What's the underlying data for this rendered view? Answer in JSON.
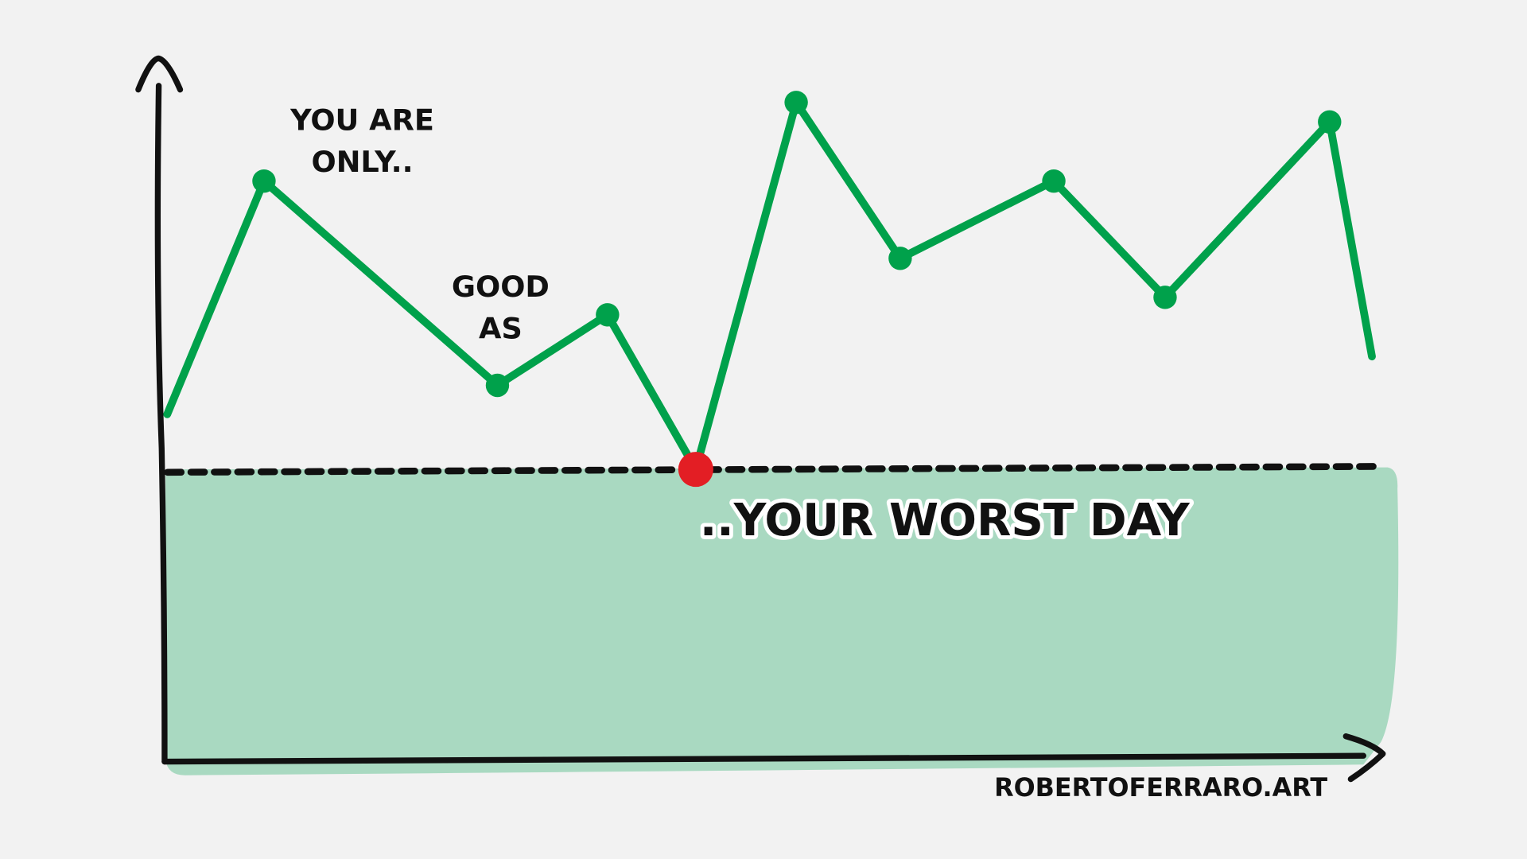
{
  "chart_data": {
    "type": "line",
    "x": [
      0.3,
      8.3,
      27.6,
      36.7,
      44.0,
      52.3,
      60.9,
      73.6,
      82.8,
      96.4,
      99.9
    ],
    "series": [
      {
        "color": "#00a14b",
        "values": [
          51.4,
          86.1,
          55.7,
          66.2,
          43.2,
          97.8,
          74.6,
          86.1,
          68.8,
          94.9,
          60.0
        ]
      }
    ],
    "xlim": [
      0,
      100
    ],
    "ylim": [
      0,
      100
    ],
    "end_markers": false,
    "highlight_color": "#e31e24",
    "threshold": {
      "value": 43.2,
      "label": "..YOUR WORST DAY",
      "fill": "#a9d9c1"
    },
    "annotations": [
      "YOU ARE",
      "ONLY..",
      "GOOD",
      "AS"
    ],
    "credit": "ROBERTOFERRARO.ART"
  }
}
